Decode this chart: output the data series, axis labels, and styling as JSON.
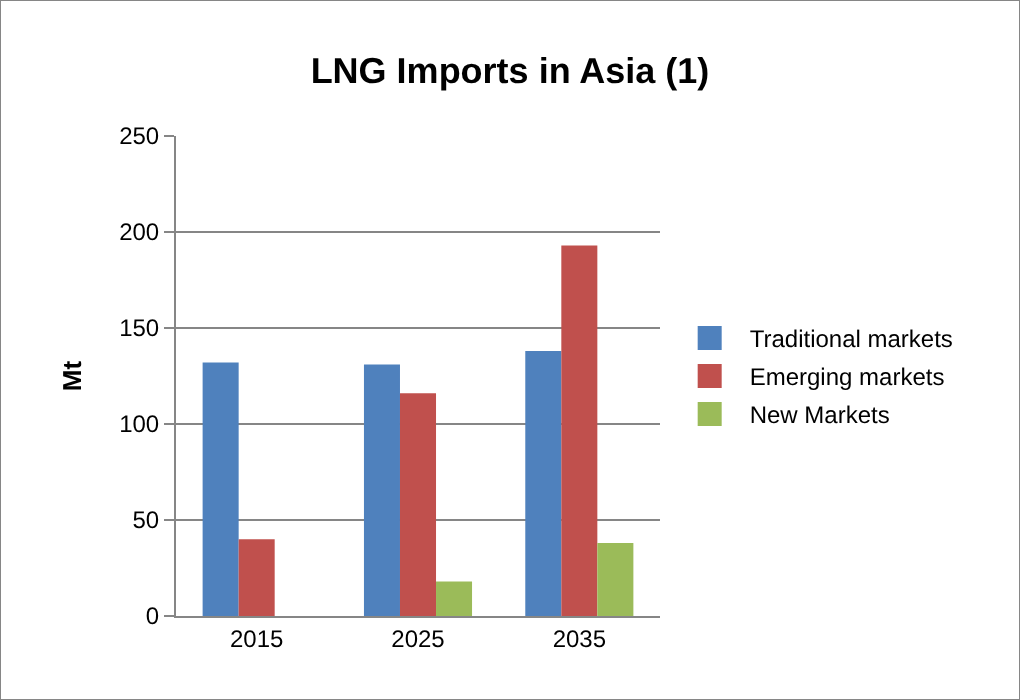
{
  "chart_data": {
    "type": "bar",
    "title": "LNG Imports in Asia (1)",
    "ylabel": "Mt",
    "categories": [
      "2015",
      "2025",
      "2035"
    ],
    "series": [
      {
        "name": "Traditional markets",
        "color": "#4f81bd",
        "values": [
          132,
          131,
          138
        ]
      },
      {
        "name": "Emerging markets",
        "color": "#c0504d",
        "values": [
          40,
          116,
          193
        ]
      },
      {
        "name": "New Markets",
        "color": "#9bbb59",
        "values": [
          null,
          18,
          38
        ]
      }
    ],
    "ylim": [
      0,
      250
    ],
    "yticks": [
      0,
      50,
      100,
      150,
      200,
      250
    ],
    "grid": "y",
    "legend": "right"
  }
}
